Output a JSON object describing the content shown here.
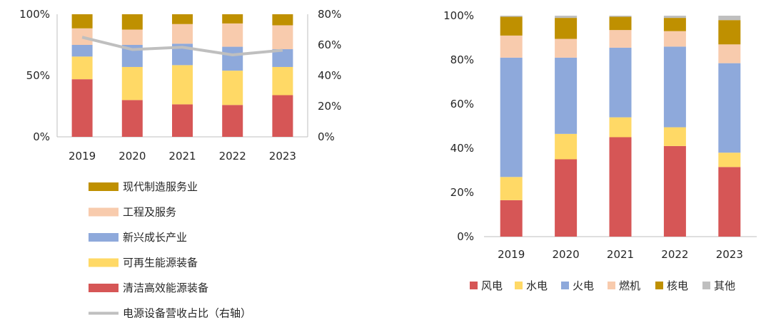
{
  "chart_data": [
    {
      "type": "bar",
      "stacked": true,
      "categories": [
        "2019",
        "2020",
        "2021",
        "2022",
        "2023"
      ],
      "ylim": [
        0,
        100
      ],
      "y_ticks": [
        "0%",
        "50%",
        "100%"
      ],
      "y2lim": [
        0,
        80
      ],
      "y2_ticks": [
        "0%",
        "20%",
        "40%",
        "60%",
        "80%"
      ],
      "legend_position": "bottom",
      "series": [
        {
          "name": "清洁高效能源装备",
          "color": "#D65656",
          "values": [
            47,
            30,
            26.5,
            26,
            34
          ]
        },
        {
          "name": "可再生能源装备",
          "color": "#FFD966",
          "values": [
            18.5,
            27,
            32,
            28,
            23
          ]
        },
        {
          "name": "新兴成长产业",
          "color": "#8EA9DB",
          "values": [
            9.5,
            18,
            17.5,
            19.5,
            14.5
          ]
        },
        {
          "name": "工程及服务",
          "color": "#F8CBAD",
          "values": [
            13.5,
            12.5,
            16,
            19,
            19.5
          ]
        },
        {
          "name": "现代制造服务业",
          "color": "#BF9000",
          "values": [
            11.5,
            12.5,
            8,
            7.5,
            9
          ]
        }
      ],
      "line_series": {
        "name": "电源设备营收占比（右轴）",
        "color": "#BFBFBF",
        "axis": "right",
        "values": [
          65,
          57,
          58.5,
          53.5,
          56.5
        ]
      }
    },
    {
      "type": "bar",
      "stacked": true,
      "categories": [
        "2019",
        "2020",
        "2021",
        "2022",
        "2023"
      ],
      "ylim": [
        0,
        100
      ],
      "y_ticks": [
        "0%",
        "20%",
        "40%",
        "60%",
        "80%",
        "100%"
      ],
      "legend_position": "bottom",
      "series": [
        {
          "name": "风电",
          "color": "#D65656",
          "values": [
            16.5,
            35,
            45,
            41,
            31.5
          ]
        },
        {
          "name": "水电",
          "color": "#FFD966",
          "values": [
            10.5,
            11.5,
            9,
            8.5,
            6.5
          ]
        },
        {
          "name": "火电",
          "color": "#8EA9DB",
          "values": [
            54,
            34.5,
            31.5,
            36.5,
            40.5
          ]
        },
        {
          "name": "燃机",
          "color": "#F8CBAD",
          "values": [
            10,
            8.5,
            8,
            7,
            8.5
          ]
        },
        {
          "name": "核电",
          "color": "#BF9000",
          "values": [
            8.5,
            9.5,
            6,
            6,
            11
          ]
        },
        {
          "name": "其他",
          "color": "#BFBFBF",
          "values": [
            0.5,
            1,
            0.5,
            1,
            2
          ]
        }
      ]
    }
  ]
}
